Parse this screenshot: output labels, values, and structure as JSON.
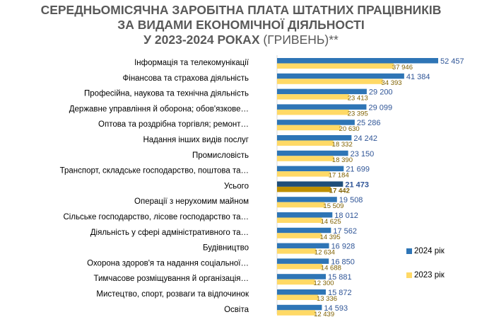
{
  "chart_data": {
    "type": "bar",
    "orientation": "horizontal",
    "title_lines": [
      "СЕРЕДНЬОМІСЯЧНА ЗАРОБІТНА ПЛАТА ШТАТНИХ ПРАЦІВНИКІВ",
      "ЗА ВИДАМИ ЕКОНОМІЧНОЇ ДІЯЛЬНОСТІ",
      "У 2023-2024 РОКАХ"
    ],
    "title_suffix": "(ГРИВЕНЬ)**",
    "categories": [
      "Інформація та телекомунікації",
      "Фінансова та страхова діяльність",
      "Професійна, наукова та технічна діяльність",
      "Державне управління й оборона; обов'язкове…",
      "Оптова та роздрібна торгівля; ремонт…",
      "Надання інших видів послуг",
      "Промисловість",
      "Транспорт, складське господарство, поштова та…",
      "Усього",
      "Операції з нерухомим майном",
      "Сільське господарство, лісове господарство та…",
      "Діяльність у сфері адміністративного та…",
      "Будівництво",
      "Охорона здоров'я та надання соціальної…",
      "Тимчасове розміщування й організація…",
      "Мистецтво, спорт, розваги та відпочинок",
      "Освіта"
    ],
    "series": [
      {
        "name": "2024 рік",
        "color": "#2e75b6",
        "highlight_color": "#1f4e79",
        "values": [
          52457,
          41384,
          29200,
          29099,
          25286,
          24242,
          23150,
          21699,
          21473,
          19508,
          18012,
          17562,
          16928,
          16850,
          15881,
          15872,
          14593
        ]
      },
      {
        "name": "2023 рік",
        "color": "#ffd966",
        "highlight_color": "#bf9000",
        "values": [
          37946,
          34393,
          23413,
          23395,
          20630,
          18332,
          18390,
          17184,
          17442,
          15509,
          14625,
          14395,
          12634,
          14688,
          12300,
          13336,
          12439
        ]
      }
    ],
    "value_labels_2024": [
      "52 457",
      "41 384",
      "29 200",
      "29 099",
      "25 286",
      "24 242",
      "23 150",
      "21 699",
      "21 473",
      "19 508",
      "18 012",
      "17 562",
      "16 928",
      "16 850",
      "15 881",
      "15 872",
      "14 593"
    ],
    "value_labels_2023": [
      "37 946",
      "34 393",
      "23 413",
      "23 395",
      "20 630",
      "18 332",
      "18 390",
      "17 184",
      "17 442",
      "15 509",
      "14 625",
      "14 395",
      "12 634",
      "14 688",
      "12 300",
      "13 336",
      "12 439"
    ],
    "highlight_category": "Усього",
    "legend_position": "right",
    "grid": false
  }
}
